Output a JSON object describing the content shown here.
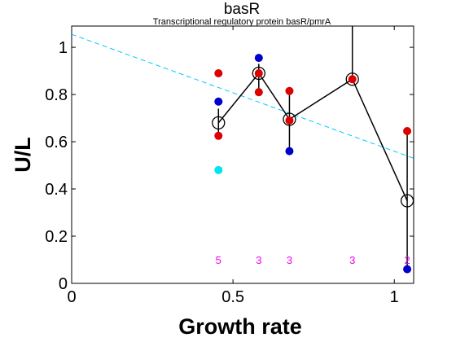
{
  "chart_data": {
    "type": "scatter",
    "title": "basR",
    "subtitle": "Transcriptional regulatory protein basR/pmrA",
    "xlabel": "Growth rate",
    "ylabel": "U/L",
    "xlim": [
      0,
      1.06
    ],
    "ylim": [
      0,
      1.09
    ],
    "xticks": [
      "0",
      "0.5",
      "1"
    ],
    "xtick_values": [
      0,
      0.5,
      1
    ],
    "yticks": [
      "0",
      "0.2",
      "0.4",
      "0.6",
      "0.8",
      "1"
    ],
    "ytick_values": [
      0,
      0.2,
      0.4,
      0.6,
      0.8,
      1
    ],
    "grid": false,
    "trend_line": {
      "color": "#00c8ff",
      "x": [
        0,
        1.06
      ],
      "y": [
        1.055,
        0.53
      ]
    },
    "mean_series": {
      "color": "#000000",
      "points": [
        {
          "x": 0.455,
          "y": 0.68,
          "err_low": 0.06,
          "err_high": 0.06
        },
        {
          "x": 0.58,
          "y": 0.89,
          "err_low": 0.08,
          "err_high": 0.04
        },
        {
          "x": 0.675,
          "y": 0.695,
          "err_low": 0.14,
          "err_high": 0.12
        },
        {
          "x": 0.87,
          "y": 0.865,
          "err_low": 0.01,
          "err_high": 0.225
        },
        {
          "x": 1.04,
          "y": 0.35,
          "err_low": 0.29,
          "err_high": 0.29
        }
      ]
    },
    "replicates": [
      {
        "color": "#dd0000",
        "points": [
          [
            0.455,
            0.89
          ],
          [
            0.455,
            0.625
          ],
          [
            0.58,
            0.81
          ],
          [
            0.58,
            0.89
          ],
          [
            0.675,
            0.815
          ],
          [
            0.675,
            0.69
          ],
          [
            0.87,
            0.865
          ],
          [
            1.04,
            0.645
          ]
        ]
      },
      {
        "color": "#0000cc",
        "points": [
          [
            0.455,
            0.77
          ],
          [
            0.58,
            0.955
          ],
          [
            0.675,
            0.56
          ],
          [
            1.04,
            0.06
          ]
        ]
      },
      {
        "color": "#00e5ee",
        "points": [
          [
            0.455,
            0.48
          ]
        ]
      }
    ],
    "counts": {
      "color": "#ee00ee",
      "y": 0.1,
      "items": [
        {
          "x": 0.455,
          "label": "5"
        },
        {
          "x": 0.58,
          "label": "3"
        },
        {
          "x": 0.675,
          "label": "3"
        },
        {
          "x": 0.87,
          "label": "3"
        },
        {
          "x": 1.04,
          "label": "2"
        }
      ]
    }
  }
}
